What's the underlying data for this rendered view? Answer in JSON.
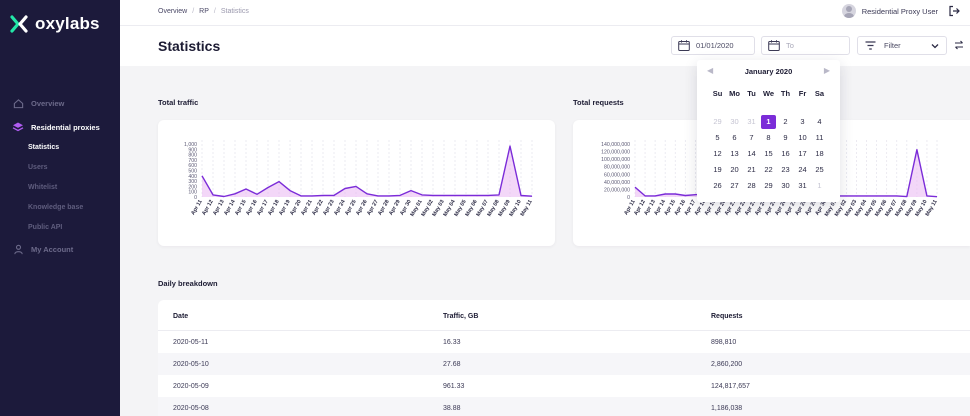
{
  "brand": {
    "name": "oxylabs",
    "accent": "#7b2cd8",
    "sidebar_bg": "#1c1a3b"
  },
  "sidebar": {
    "items": [
      {
        "label": "Overview",
        "icon": "home-icon"
      },
      {
        "label": "Residential proxies",
        "icon": "layers-icon"
      },
      {
        "label": "My Account",
        "icon": "user-icon"
      }
    ],
    "sub_items": [
      "Statistics",
      "Users",
      "Whitelist",
      "Knowledge base",
      "Public API"
    ]
  },
  "breadcrumb": {
    "items": [
      "Overview",
      "RP",
      "Statistics"
    ]
  },
  "user": {
    "name": "Residential Proxy User"
  },
  "page": {
    "title": "Statistics"
  },
  "filters": {
    "date_from": "01/01/2020",
    "date_to_placeholder": "To",
    "filter_label": "Filter"
  },
  "sections": {
    "total_traffic": "Total traffic",
    "total_requests": "Total requests",
    "daily_breakdown": "Daily breakdown"
  },
  "chart_data": [
    {
      "type": "area",
      "title": "Total traffic",
      "color": "#7b2cd8",
      "x": [
        "Apr 11",
        "Apr 12",
        "Apr 13",
        "Apr 14",
        "Apr 15",
        "Apr 16",
        "Apr 17",
        "Apr 18",
        "Apr 19",
        "Apr 20",
        "Apr 21",
        "Apr 22",
        "Apr 23",
        "Apr 24",
        "Apr 25",
        "Apr 26",
        "Apr 27",
        "Apr 28",
        "Apr 29",
        "Apr 30",
        "May 01",
        "May 02",
        "May 03",
        "May 04",
        "May 05",
        "May 06",
        "May 07",
        "May 08",
        "May 09",
        "May 10",
        "May 11"
      ],
      "y": [
        400,
        40,
        10,
        60,
        150,
        50,
        180,
        290,
        120,
        20,
        20,
        30,
        30,
        160,
        200,
        60,
        20,
        20,
        30,
        120,
        40,
        30,
        30,
        30,
        30,
        30,
        30,
        40,
        961,
        28,
        16
      ],
      "y_ticks": [
        "1,000",
        "900",
        "800",
        "700",
        "600",
        "500",
        "400",
        "300",
        "200",
        "100",
        "0"
      ],
      "ylim": [
        0,
        1000
      ],
      "grid": true
    },
    {
      "type": "area",
      "title": "Total requests",
      "color": "#7b2cd8",
      "x": [
        "Apr 11",
        "Apr 12",
        "Apr 13",
        "Apr 14",
        "Apr 15",
        "Apr 16",
        "Apr 17",
        "Apr 18",
        "Apr 19",
        "Apr 20",
        "Apr 21",
        "Apr 22",
        "Apr 23",
        "Apr 24",
        "Apr 25",
        "Apr 26",
        "Apr 27",
        "Apr 28",
        "Apr 29",
        "Apr 30",
        "May 01",
        "May 02",
        "May 03",
        "May 04",
        "May 05",
        "May 06",
        "May 07",
        "May 08",
        "May 09",
        "May 10",
        "May 11"
      ],
      "y": [
        26000000,
        3000000,
        3000000,
        8000000,
        8000000,
        4000000,
        6000000,
        8000000,
        5000000,
        3000000,
        3000000,
        4000000,
        4000000,
        6000000,
        8000000,
        5000000,
        3000000,
        3000000,
        3000000,
        4000000,
        3000000,
        3000000,
        3000000,
        3000000,
        3000000,
        3000000,
        3000000,
        1186038,
        124817657,
        2860200,
        898810
      ],
      "y_ticks": [
        "140,000,000",
        "120,000,000",
        "100,000,000",
        "80,000,000",
        "60,000,000",
        "40,000,000",
        "20,000,000",
        "0"
      ],
      "ylim": [
        0,
        140000000
      ],
      "grid": true
    }
  ],
  "table": {
    "columns": [
      "Date",
      "Traffic, GB",
      "Requests"
    ],
    "rows": [
      [
        "2020-05-11",
        "16.33",
        "898,810"
      ],
      [
        "2020-05-10",
        "27.68",
        "2,860,200"
      ],
      [
        "2020-05-09",
        "961.33",
        "124,817,657"
      ],
      [
        "2020-05-08",
        "38.88",
        "1,186,038"
      ]
    ]
  },
  "calendar": {
    "month_label": "January 2020",
    "weekdays": [
      "Su",
      "Mo",
      "Tu",
      "We",
      "Th",
      "Fr",
      "Sa"
    ],
    "days": [
      [
        "29",
        "30",
        "31",
        "1",
        "2",
        "3",
        "4"
      ],
      [
        "5",
        "6",
        "7",
        "8",
        "9",
        "10",
        "11"
      ],
      [
        "12",
        "13",
        "14",
        "15",
        "16",
        "17",
        "18"
      ],
      [
        "19",
        "20",
        "21",
        "22",
        "23",
        "24",
        "25"
      ],
      [
        "26",
        "27",
        "28",
        "29",
        "30",
        "31",
        "1"
      ]
    ],
    "muted": [
      [
        0,
        0
      ],
      [
        0,
        1
      ],
      [
        0,
        2
      ],
      [
        4,
        6
      ]
    ],
    "selected": [
      0,
      3
    ]
  }
}
